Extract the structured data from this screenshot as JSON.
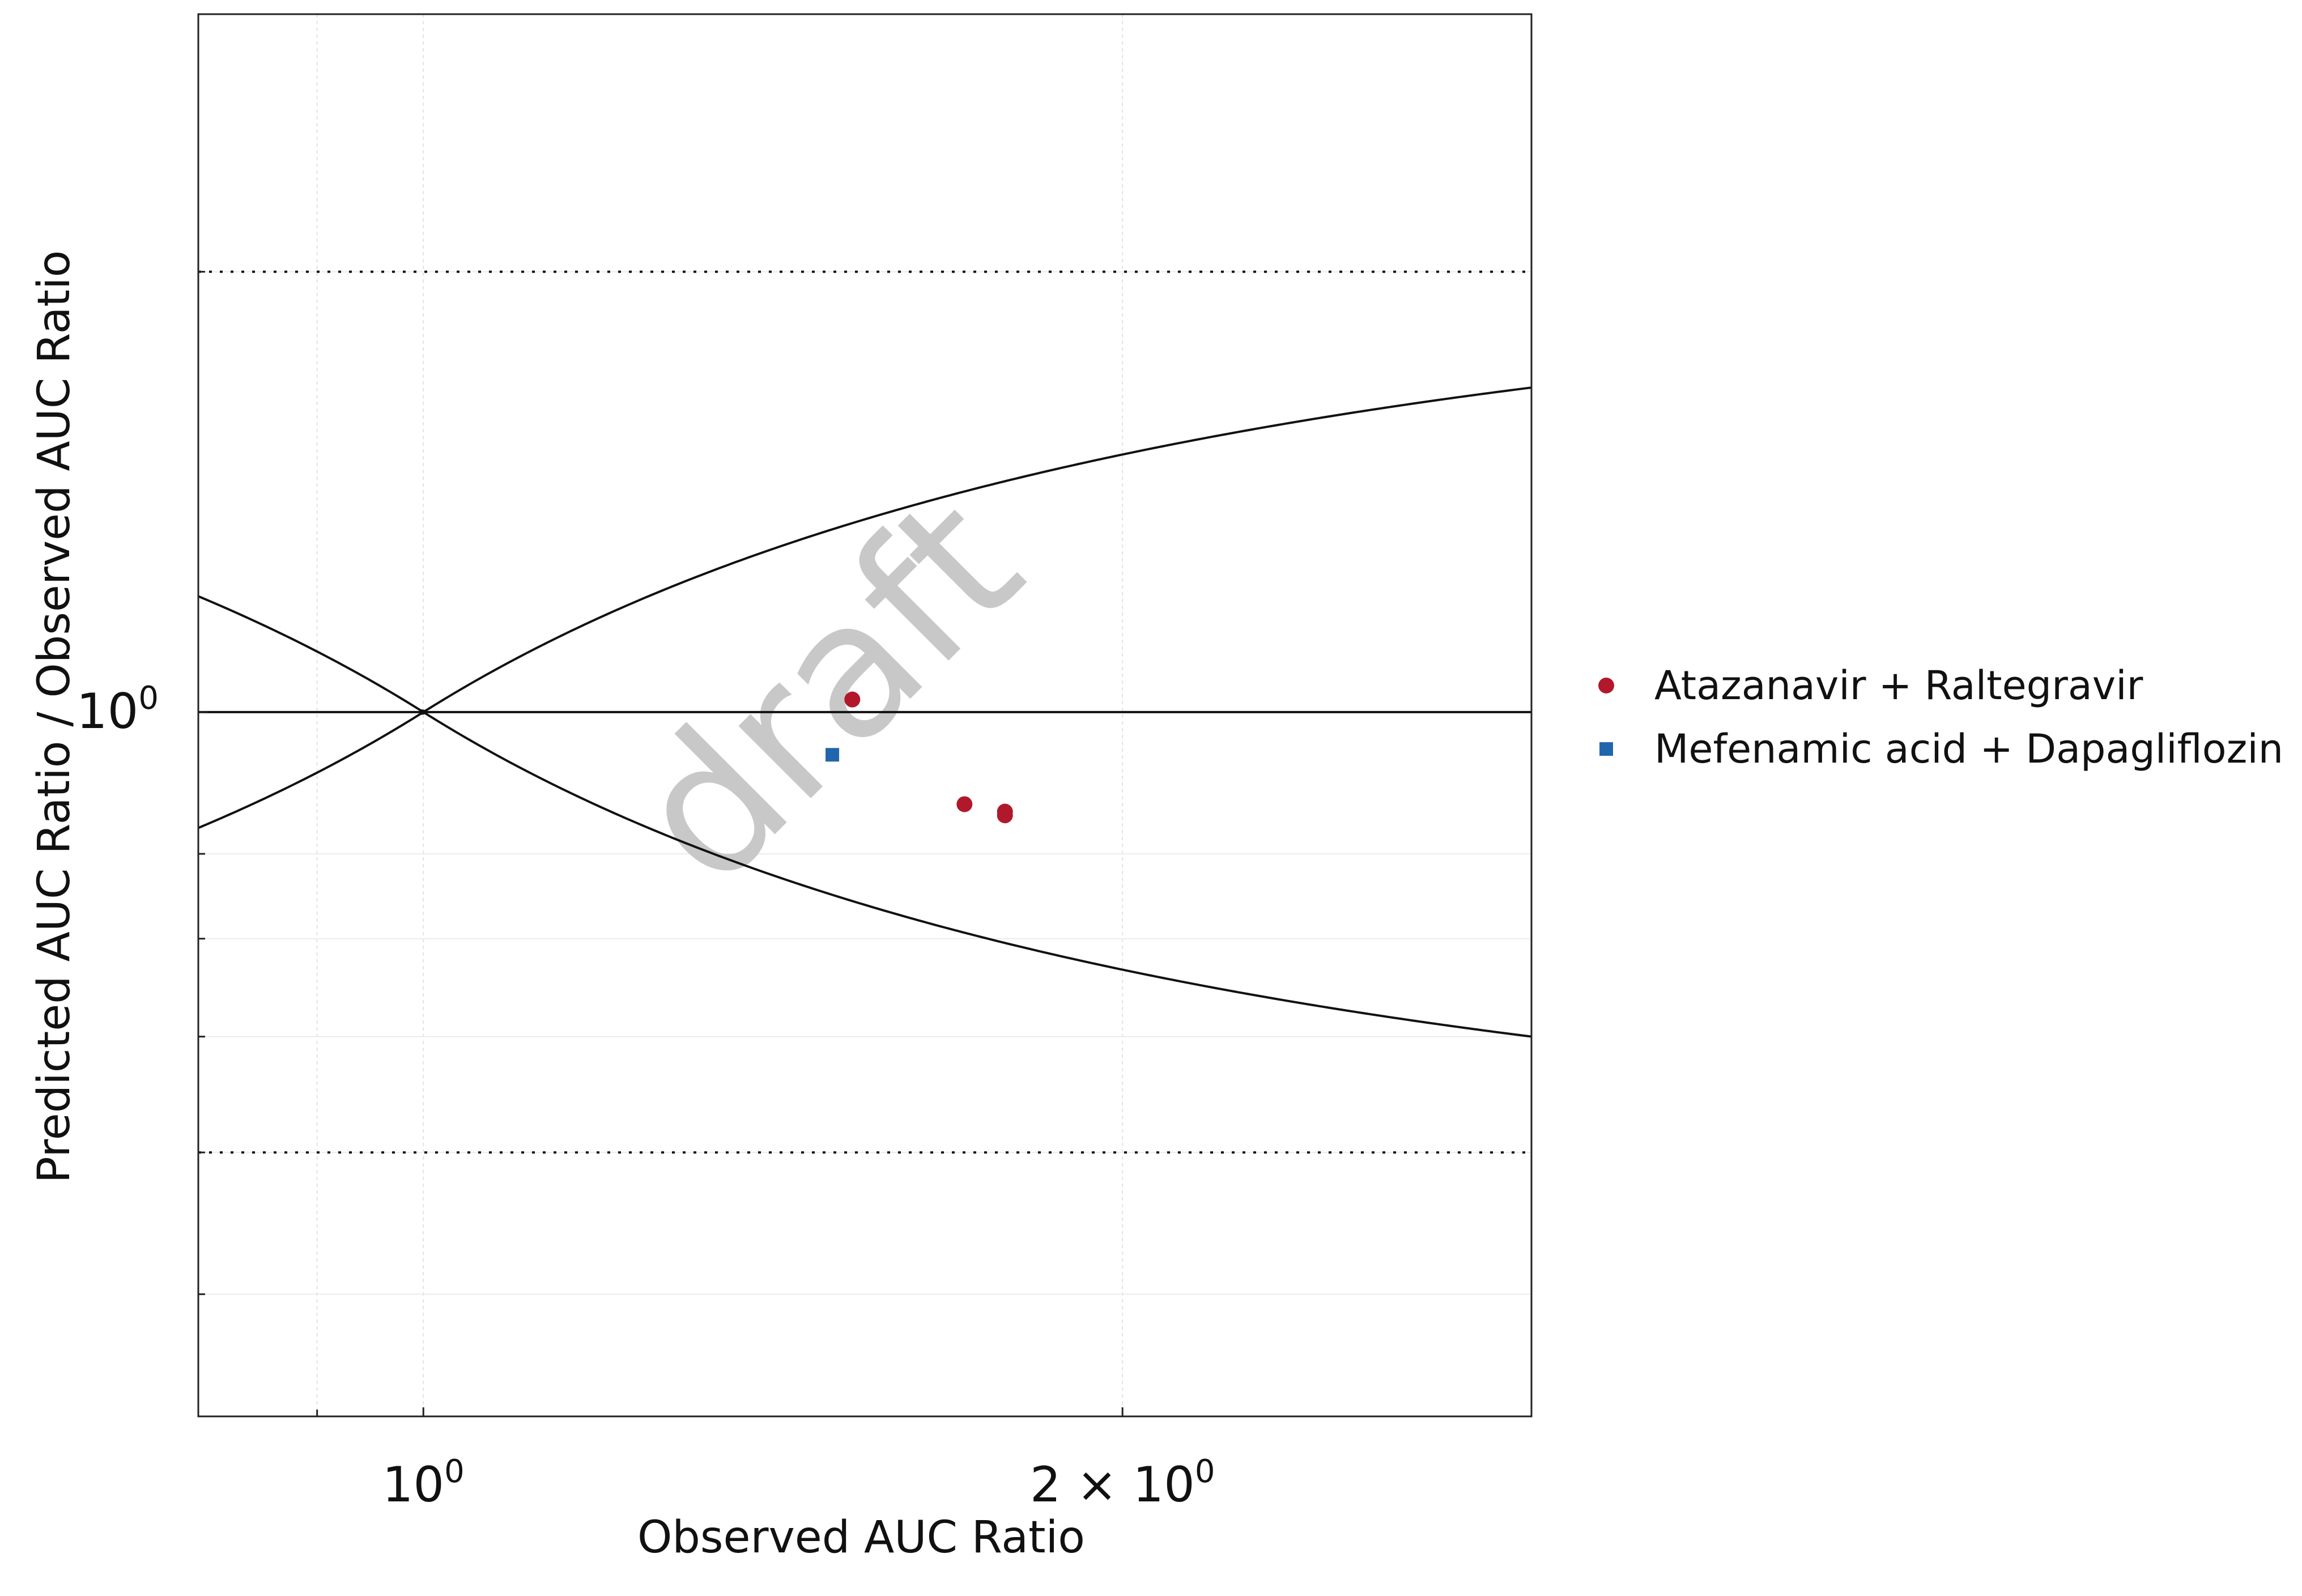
{
  "chart_data": {
    "type": "scatter",
    "title": "",
    "xlabel": "Observed AUC Ratio",
    "ylabel": "Predicted AUC Ratio / Observed AUC Ratio",
    "x_scale": "log",
    "y_scale": "log",
    "xlim": [
      0.8,
      3.0
    ],
    "ylim": [
      0.33,
      3.0
    ],
    "x_ticks": [
      {
        "value": 1,
        "label": "10",
        "sup": "0"
      },
      {
        "value": 2,
        "label": "2 × 10",
        "sup": "0"
      }
    ],
    "y_ticks": [
      {
        "value": 1,
        "label": "10",
        "sup": "0"
      }
    ],
    "x_minor_ticks": [
      0.9,
      3
    ],
    "y_minor_ticks": [
      0.4,
      0.5,
      0.6,
      0.7,
      0.8,
      2,
      3
    ],
    "reference_lines": [
      {
        "type": "horizontal",
        "y": 1,
        "style": "solid"
      },
      {
        "type": "horizontal",
        "y": 2,
        "style": "dotted"
      },
      {
        "type": "horizontal",
        "y": 0.5,
        "style": "dotted"
      },
      {
        "type": "guest_limits",
        "delta": 1,
        "style": "solid"
      }
    ],
    "grid": true,
    "legend_position": "right",
    "series": [
      {
        "name": "Atazanavir + Raltegravir",
        "color": "#b2182b",
        "marker": "circle",
        "points": [
          {
            "x": 1.53,
            "y": 1.02
          },
          {
            "x": 1.71,
            "y": 0.865
          },
          {
            "x": 1.78,
            "y": 0.855
          },
          {
            "x": 1.78,
            "y": 0.85
          }
        ]
      },
      {
        "name": "Mefenamic acid + Dapagliflozin",
        "color": "#2166ac",
        "marker": "square",
        "points": [
          {
            "x": 1.5,
            "y": 0.935
          }
        ]
      }
    ],
    "watermark": "draft"
  }
}
